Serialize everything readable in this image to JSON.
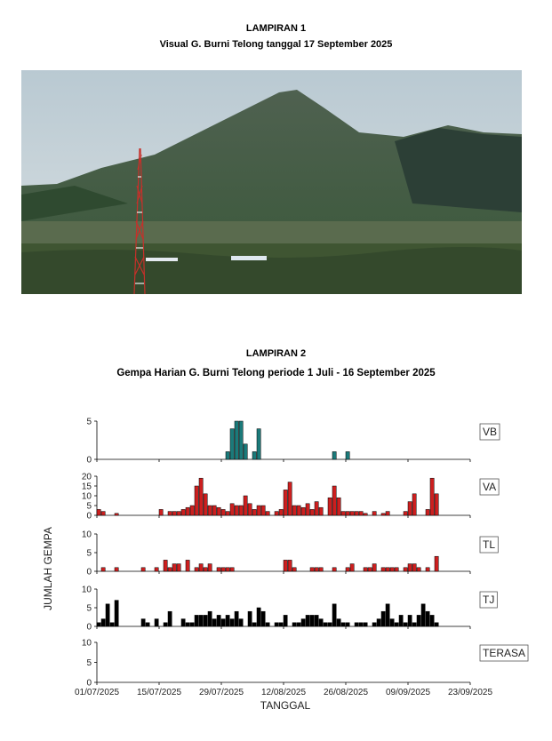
{
  "lampiran1": {
    "heading": "LAMPIRAN 1",
    "caption": "Visual G. Burni Telong tanggal 17 September 2025"
  },
  "lampiran2": {
    "heading": "LAMPIRAN 2",
    "caption": "Gempa Harian G. Burni Telong periode 1  Juli -  16 September 2025"
  },
  "chart_data": {
    "type": "bar",
    "ylabel": "JUMLAH GEMPA",
    "xlabel": "TANGGAL",
    "x_ticks": [
      "01/07/2025",
      "15/07/2025",
      "29/07/2025",
      "12/08/2025",
      "26/08/2025",
      "09/09/2025",
      "23/09/2025"
    ],
    "xlim": [
      "2025-07-01",
      "2025-09-23"
    ],
    "series": [
      {
        "name": "VB",
        "color": "#1b7a7a",
        "ylim": [
          0,
          5
        ],
        "yticks": [
          0,
          5
        ],
        "points": [
          {
            "x": "2025-07-30",
            "y": 1
          },
          {
            "x": "2025-07-31",
            "y": 4
          },
          {
            "x": "2025-08-01",
            "y": 5
          },
          {
            "x": "2025-08-02",
            "y": 5
          },
          {
            "x": "2025-08-03",
            "y": 2
          },
          {
            "x": "2025-08-05",
            "y": 1
          },
          {
            "x": "2025-08-06",
            "y": 4
          },
          {
            "x": "2025-08-23",
            "y": 1
          },
          {
            "x": "2025-08-26",
            "y": 1
          }
        ]
      },
      {
        "name": "VA",
        "color": "#cc1f1f",
        "ylim": [
          0,
          20
        ],
        "yticks": [
          0,
          5,
          10,
          15,
          20
        ],
        "points": [
          {
            "x": "2025-07-01",
            "y": 3
          },
          {
            "x": "2025-07-02",
            "y": 2
          },
          {
            "x": "2025-07-05",
            "y": 1
          },
          {
            "x": "2025-07-15",
            "y": 3
          },
          {
            "x": "2025-07-17",
            "y": 2
          },
          {
            "x": "2025-07-18",
            "y": 2
          },
          {
            "x": "2025-07-19",
            "y": 2
          },
          {
            "x": "2025-07-20",
            "y": 3
          },
          {
            "x": "2025-07-21",
            "y": 4
          },
          {
            "x": "2025-07-22",
            "y": 5
          },
          {
            "x": "2025-07-23",
            "y": 15
          },
          {
            "x": "2025-07-24",
            "y": 19
          },
          {
            "x": "2025-07-25",
            "y": 11
          },
          {
            "x": "2025-07-26",
            "y": 5
          },
          {
            "x": "2025-07-27",
            "y": 5
          },
          {
            "x": "2025-07-28",
            "y": 4
          },
          {
            "x": "2025-07-29",
            "y": 3
          },
          {
            "x": "2025-07-30",
            "y": 2
          },
          {
            "x": "2025-07-31",
            "y": 6
          },
          {
            "x": "2025-08-01",
            "y": 5
          },
          {
            "x": "2025-08-02",
            "y": 5
          },
          {
            "x": "2025-08-03",
            "y": 10
          },
          {
            "x": "2025-08-04",
            "y": 6
          },
          {
            "x": "2025-08-05",
            "y": 3
          },
          {
            "x": "2025-08-06",
            "y": 5
          },
          {
            "x": "2025-08-07",
            "y": 5
          },
          {
            "x": "2025-08-08",
            "y": 2
          },
          {
            "x": "2025-08-10",
            "y": 2
          },
          {
            "x": "2025-08-11",
            "y": 3
          },
          {
            "x": "2025-08-12",
            "y": 13
          },
          {
            "x": "2025-08-13",
            "y": 17
          },
          {
            "x": "2025-08-14",
            "y": 5
          },
          {
            "x": "2025-08-15",
            "y": 5
          },
          {
            "x": "2025-08-16",
            "y": 4
          },
          {
            "x": "2025-08-17",
            "y": 6
          },
          {
            "x": "2025-08-18",
            "y": 3
          },
          {
            "x": "2025-08-19",
            "y": 7
          },
          {
            "x": "2025-08-20",
            "y": 4
          },
          {
            "x": "2025-08-22",
            "y": 9
          },
          {
            "x": "2025-08-23",
            "y": 15
          },
          {
            "x": "2025-08-24",
            "y": 9
          },
          {
            "x": "2025-08-25",
            "y": 2
          },
          {
            "x": "2025-08-26",
            "y": 2
          },
          {
            "x": "2025-08-27",
            "y": 2
          },
          {
            "x": "2025-08-28",
            "y": 2
          },
          {
            "x": "2025-08-29",
            "y": 2
          },
          {
            "x": "2025-08-30",
            "y": 1
          },
          {
            "x": "2025-09-01",
            "y": 2
          },
          {
            "x": "2025-09-03",
            "y": 1
          },
          {
            "x": "2025-09-04",
            "y": 2
          },
          {
            "x": "2025-09-08",
            "y": 2
          },
          {
            "x": "2025-09-09",
            "y": 7
          },
          {
            "x": "2025-09-10",
            "y": 11
          },
          {
            "x": "2025-09-13",
            "y": 3
          },
          {
            "x": "2025-09-14",
            "y": 19
          },
          {
            "x": "2025-09-15",
            "y": 11
          }
        ]
      },
      {
        "name": "TL",
        "color": "#cc1f1f",
        "ylim": [
          0,
          10
        ],
        "yticks": [
          0,
          5,
          10
        ],
        "points": [
          {
            "x": "2025-07-02",
            "y": 1
          },
          {
            "x": "2025-07-05",
            "y": 1
          },
          {
            "x": "2025-07-11",
            "y": 1
          },
          {
            "x": "2025-07-14",
            "y": 1
          },
          {
            "x": "2025-07-16",
            "y": 3
          },
          {
            "x": "2025-07-17",
            "y": 1
          },
          {
            "x": "2025-07-18",
            "y": 2
          },
          {
            "x": "2025-07-19",
            "y": 2
          },
          {
            "x": "2025-07-21",
            "y": 3
          },
          {
            "x": "2025-07-23",
            "y": 1
          },
          {
            "x": "2025-07-24",
            "y": 2
          },
          {
            "x": "2025-07-25",
            "y": 1
          },
          {
            "x": "2025-07-26",
            "y": 2
          },
          {
            "x": "2025-07-28",
            "y": 1
          },
          {
            "x": "2025-07-29",
            "y": 1
          },
          {
            "x": "2025-07-30",
            "y": 1
          },
          {
            "x": "2025-07-31",
            "y": 1
          },
          {
            "x": "2025-08-12",
            "y": 3
          },
          {
            "x": "2025-08-13",
            "y": 3
          },
          {
            "x": "2025-08-14",
            "y": 1
          },
          {
            "x": "2025-08-18",
            "y": 1
          },
          {
            "x": "2025-08-19",
            "y": 1
          },
          {
            "x": "2025-08-20",
            "y": 1
          },
          {
            "x": "2025-08-23",
            "y": 1
          },
          {
            "x": "2025-08-26",
            "y": 1
          },
          {
            "x": "2025-08-27",
            "y": 2
          },
          {
            "x": "2025-08-30",
            "y": 1
          },
          {
            "x": "2025-08-31",
            "y": 1
          },
          {
            "x": "2025-09-01",
            "y": 2
          },
          {
            "x": "2025-09-03",
            "y": 1
          },
          {
            "x": "2025-09-04",
            "y": 1
          },
          {
            "x": "2025-09-05",
            "y": 1
          },
          {
            "x": "2025-09-06",
            "y": 1
          },
          {
            "x": "2025-09-08",
            "y": 1
          },
          {
            "x": "2025-09-09",
            "y": 2
          },
          {
            "x": "2025-09-10",
            "y": 2
          },
          {
            "x": "2025-09-11",
            "y": 1
          },
          {
            "x": "2025-09-13",
            "y": 1
          },
          {
            "x": "2025-09-15",
            "y": 4
          }
        ]
      },
      {
        "name": "TJ",
        "color": "#000000",
        "ylim": [
          0,
          10
        ],
        "yticks": [
          0,
          5,
          10
        ],
        "points": [
          {
            "x": "2025-07-01",
            "y": 1
          },
          {
            "x": "2025-07-02",
            "y": 2
          },
          {
            "x": "2025-07-03",
            "y": 6
          },
          {
            "x": "2025-07-04",
            "y": 1
          },
          {
            "x": "2025-07-05",
            "y": 7
          },
          {
            "x": "2025-07-11",
            "y": 2
          },
          {
            "x": "2025-07-12",
            "y": 1
          },
          {
            "x": "2025-07-14",
            "y": 2
          },
          {
            "x": "2025-07-16",
            "y": 1
          },
          {
            "x": "2025-07-17",
            "y": 4
          },
          {
            "x": "2025-07-20",
            "y": 2
          },
          {
            "x": "2025-07-21",
            "y": 1
          },
          {
            "x": "2025-07-22",
            "y": 1
          },
          {
            "x": "2025-07-23",
            "y": 3
          },
          {
            "x": "2025-07-24",
            "y": 3
          },
          {
            "x": "2025-07-25",
            "y": 3
          },
          {
            "x": "2025-07-26",
            "y": 4
          },
          {
            "x": "2025-07-27",
            "y": 2
          },
          {
            "x": "2025-07-28",
            "y": 3
          },
          {
            "x": "2025-07-29",
            "y": 2
          },
          {
            "x": "2025-07-30",
            "y": 3
          },
          {
            "x": "2025-07-31",
            "y": 2
          },
          {
            "x": "2025-08-01",
            "y": 4
          },
          {
            "x": "2025-08-02",
            "y": 2
          },
          {
            "x": "2025-08-04",
            "y": 4
          },
          {
            "x": "2025-08-05",
            "y": 1
          },
          {
            "x": "2025-08-06",
            "y": 5
          },
          {
            "x": "2025-08-07",
            "y": 4
          },
          {
            "x": "2025-08-08",
            "y": 1
          },
          {
            "x": "2025-08-10",
            "y": 1
          },
          {
            "x": "2025-08-11",
            "y": 1
          },
          {
            "x": "2025-08-12",
            "y": 3
          },
          {
            "x": "2025-08-14",
            "y": 1
          },
          {
            "x": "2025-08-15",
            "y": 1
          },
          {
            "x": "2025-08-16",
            "y": 2
          },
          {
            "x": "2025-08-17",
            "y": 3
          },
          {
            "x": "2025-08-18",
            "y": 3
          },
          {
            "x": "2025-08-19",
            "y": 3
          },
          {
            "x": "2025-08-20",
            "y": 2
          },
          {
            "x": "2025-08-21",
            "y": 1
          },
          {
            "x": "2025-08-22",
            "y": 1
          },
          {
            "x": "2025-08-23",
            "y": 6
          },
          {
            "x": "2025-08-24",
            "y": 2
          },
          {
            "x": "2025-08-25",
            "y": 1
          },
          {
            "x": "2025-08-26",
            "y": 1
          },
          {
            "x": "2025-08-28",
            "y": 1
          },
          {
            "x": "2025-08-29",
            "y": 1
          },
          {
            "x": "2025-08-30",
            "y": 1
          },
          {
            "x": "2025-09-01",
            "y": 1
          },
          {
            "x": "2025-09-02",
            "y": 2
          },
          {
            "x": "2025-09-03",
            "y": 4
          },
          {
            "x": "2025-09-04",
            "y": 6
          },
          {
            "x": "2025-09-05",
            "y": 2
          },
          {
            "x": "2025-09-06",
            "y": 1
          },
          {
            "x": "2025-09-07",
            "y": 3
          },
          {
            "x": "2025-09-08",
            "y": 1
          },
          {
            "x": "2025-09-09",
            "y": 3
          },
          {
            "x": "2025-09-10",
            "y": 1
          },
          {
            "x": "2025-09-11",
            "y": 3
          },
          {
            "x": "2025-09-12",
            "y": 6
          },
          {
            "x": "2025-09-13",
            "y": 4
          },
          {
            "x": "2025-09-14",
            "y": 3
          },
          {
            "x": "2025-09-15",
            "y": 1
          }
        ]
      },
      {
        "name": "TERASA",
        "color": "#000000",
        "ylim": [
          0,
          10
        ],
        "yticks": [
          0,
          5,
          10
        ],
        "points": []
      }
    ]
  }
}
